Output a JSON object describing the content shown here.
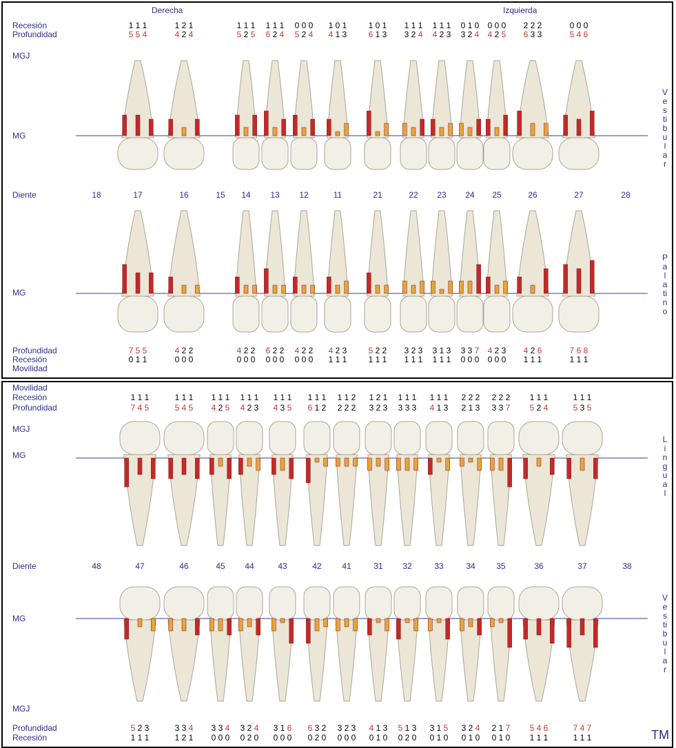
{
  "upper": {
    "header_right": "Derecha",
    "header_left": "Izquierda",
    "labels": {
      "recession_top": "Recesión",
      "depth_top": "Profundidad",
      "mgj": "MGJ",
      "mg_top": "MG",
      "tooth": "Diente",
      "mg_bottom": "MG",
      "depth_bottom": "Profundidad",
      "recession_bottom": "Recesión",
      "mobility": "Movilidad"
    },
    "side_top": "Vestibular",
    "side_bottom": "Palatino",
    "teeth": [
      {
        "number": "18"
      },
      {
        "number": "17",
        "top_recession": [
          1,
          1,
          1
        ],
        "top_depth": [
          5,
          5,
          4
        ],
        "bottom_depth": [
          7,
          5,
          5
        ],
        "bottom_recession": [
          0,
          1,
          1
        ]
      },
      {
        "number": "16",
        "top_recession": [
          1,
          2,
          1
        ],
        "top_depth": [
          4,
          2,
          4
        ],
        "bottom_depth": [
          4,
          2,
          2
        ],
        "bottom_recession": [
          0,
          0,
          0
        ]
      },
      {
        "number": "15"
      },
      {
        "number": "14",
        "top_recession": [
          1,
          1,
          1
        ],
        "top_depth": [
          5,
          2,
          5
        ],
        "bottom_depth": [
          4,
          2,
          2
        ],
        "bottom_recession": [
          0,
          0,
          0
        ]
      },
      {
        "number": "13",
        "top_recession": [
          1,
          1,
          1
        ],
        "top_depth": [
          6,
          2,
          4
        ],
        "bottom_depth": [
          6,
          2,
          2
        ],
        "bottom_recession": [
          0,
          0,
          0
        ]
      },
      {
        "number": "12",
        "top_recession": [
          0,
          0,
          0
        ],
        "top_depth": [
          5,
          2,
          4
        ],
        "bottom_depth": [
          4,
          2,
          2
        ],
        "bottom_recession": [
          0,
          0,
          0
        ]
      },
      {
        "number": "11",
        "top_recession": [
          1,
          0,
          1
        ],
        "top_depth": [
          4,
          1,
          3
        ],
        "bottom_depth": [
          4,
          2,
          3
        ],
        "bottom_recession": [
          1,
          1,
          1
        ]
      },
      {
        "number": "21",
        "top_recession": [
          1,
          0,
          1
        ],
        "top_depth": [
          6,
          1,
          3
        ],
        "bottom_depth": [
          5,
          2,
          2
        ],
        "bottom_recession": [
          1,
          1,
          1
        ]
      },
      {
        "number": "22",
        "top_recession": [
          1,
          1,
          1
        ],
        "top_depth": [
          3,
          2,
          4
        ],
        "bottom_depth": [
          3,
          2,
          3
        ],
        "bottom_recession": [
          1,
          1,
          1
        ]
      },
      {
        "number": "23",
        "top_recession": [
          1,
          1,
          1
        ],
        "top_depth": [
          4,
          2,
          3
        ],
        "bottom_depth": [
          3,
          1,
          3
        ],
        "bottom_recession": [
          1,
          1,
          1
        ]
      },
      {
        "number": "24",
        "top_recession": [
          0,
          1,
          0
        ],
        "top_depth": [
          3,
          2,
          4
        ],
        "bottom_depth": [
          3,
          3,
          7
        ],
        "bottom_recession": [
          0,
          0,
          0
        ]
      },
      {
        "number": "25",
        "top_recession": [
          0,
          0,
          0
        ],
        "top_depth": [
          4,
          2,
          5
        ],
        "bottom_depth": [
          4,
          2,
          3
        ],
        "bottom_recession": [
          0,
          0,
          0
        ]
      },
      {
        "number": "26",
        "top_recession": [
          2,
          2,
          2
        ],
        "top_depth": [
          6,
          3,
          3
        ],
        "bottom_depth": [
          4,
          2,
          6
        ],
        "bottom_recession": [
          1,
          1,
          1
        ]
      },
      {
        "number": "27",
        "top_recession": [
          0,
          0,
          0
        ],
        "top_depth": [
          5,
          4,
          6
        ],
        "bottom_depth": [
          7,
          6,
          8
        ],
        "bottom_recession": [
          1,
          1,
          1
        ]
      },
      {
        "number": "28"
      }
    ]
  },
  "lower": {
    "labels": {
      "mobility": "Movilidad",
      "recession_top": "Recesión",
      "depth_top": "Profundidad",
      "mgj_top": "MGJ",
      "mg_top": "MG",
      "tooth": "Diente",
      "mg_bottom": "MG",
      "mgj_bottom": "MGJ",
      "depth_bottom": "Profundidad",
      "recession_bottom": "Recesión"
    },
    "side_top": "Lingual",
    "side_bottom": "Vestibular",
    "teeth": [
      {
        "number": "48"
      },
      {
        "number": "47",
        "top_recession": [
          1,
          1,
          1
        ],
        "top_depth": [
          7,
          4,
          5
        ],
        "bottom_depth": [
          5,
          2,
          3
        ],
        "bottom_recession": [
          1,
          1,
          1
        ]
      },
      {
        "number": "46",
        "top_recession": [
          1,
          1,
          1
        ],
        "top_depth": [
          5,
          4,
          5
        ],
        "bottom_depth": [
          3,
          3,
          4
        ],
        "bottom_recession": [
          1,
          2,
          1
        ]
      },
      {
        "number": "45",
        "top_recession": [
          1,
          1,
          1
        ],
        "top_depth": [
          4,
          2,
          5
        ],
        "bottom_depth": [
          3,
          3,
          4
        ],
        "bottom_recession": [
          0,
          0,
          0
        ]
      },
      {
        "number": "44",
        "top_recession": [
          1,
          1,
          1
        ],
        "top_depth": [
          4,
          2,
          3
        ],
        "bottom_depth": [
          3,
          2,
          4
        ],
        "bottom_recession": [
          0,
          2,
          0
        ]
      },
      {
        "number": "43",
        "top_recession": [
          1,
          1,
          1
        ],
        "top_depth": [
          4,
          3,
          5
        ],
        "bottom_depth": [
          3,
          1,
          6
        ],
        "bottom_recession": [
          0,
          0,
          0
        ]
      },
      {
        "number": "42",
        "top_recession": [
          1,
          1,
          1
        ],
        "top_depth": [
          6,
          1,
          2
        ],
        "bottom_depth": [
          6,
          3,
          2
        ],
        "bottom_recession": [
          0,
          2,
          0
        ]
      },
      {
        "number": "41",
        "top_recession": [
          1,
          1,
          2
        ],
        "top_depth": [
          2,
          2,
          2
        ],
        "bottom_depth": [
          3,
          2,
          3
        ],
        "bottom_recession": [
          0,
          0,
          0
        ]
      },
      {
        "number": "31",
        "top_recession": [
          1,
          2,
          1
        ],
        "top_depth": [
          3,
          2,
          3
        ],
        "bottom_depth": [
          4,
          1,
          3
        ],
        "bottom_recession": [
          0,
          1,
          0
        ]
      },
      {
        "number": "32",
        "top_recession": [
          1,
          1,
          1
        ],
        "top_depth": [
          3,
          3,
          3
        ],
        "bottom_depth": [
          5,
          1,
          3
        ],
        "bottom_recession": [
          0,
          2,
          0
        ]
      },
      {
        "number": "33",
        "top_recession": [
          1,
          1,
          1
        ],
        "top_depth": [
          4,
          1,
          3
        ],
        "bottom_depth": [
          3,
          1,
          5
        ],
        "bottom_recession": [
          0,
          1,
          0
        ]
      },
      {
        "number": "34",
        "top_recession": [
          2,
          2,
          2
        ],
        "top_depth": [
          2,
          1,
          3
        ],
        "bottom_depth": [
          3,
          2,
          4
        ],
        "bottom_recession": [
          0,
          1,
          0
        ]
      },
      {
        "number": "35",
        "top_recession": [
          2,
          2,
          2
        ],
        "top_depth": [
          3,
          3,
          7
        ],
        "bottom_depth": [
          2,
          1,
          7
        ],
        "bottom_recession": [
          0,
          1,
          0
        ]
      },
      {
        "number": "36",
        "top_recession": [
          1,
          1,
          1
        ],
        "top_depth": [
          5,
          2,
          4
        ],
        "bottom_depth": [
          5,
          4,
          6
        ],
        "bottom_recession": [
          1,
          1,
          1
        ]
      },
      {
        "number": "37",
        "top_recession": [
          1,
          1,
          1
        ],
        "top_depth": [
          5,
          3,
          5
        ],
        "bottom_depth": [
          7,
          4,
          7
        ],
        "bottom_recession": [
          1,
          1,
          1
        ]
      },
      {
        "number": "38"
      }
    ]
  },
  "footer": "TM"
}
